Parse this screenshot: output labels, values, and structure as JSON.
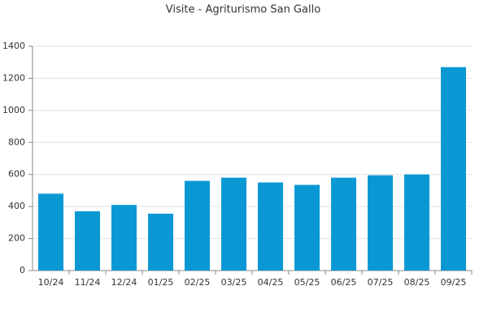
{
  "chart_data": {
    "type": "bar",
    "title": "Visite - Agriturismo San Gallo",
    "categories": [
      "10/24",
      "11/24",
      "12/24",
      "01/25",
      "02/25",
      "03/25",
      "04/25",
      "05/25",
      "06/25",
      "07/25",
      "08/25",
      "09/25"
    ],
    "values": [
      480,
      370,
      410,
      355,
      560,
      580,
      550,
      535,
      580,
      595,
      600,
      1270
    ],
    "color": "#0a98d5",
    "ylim": [
      0,
      1400
    ],
    "yticks": [
      0,
      200,
      400,
      600,
      800,
      1000,
      1200,
      1400
    ],
    "grid": true
  }
}
